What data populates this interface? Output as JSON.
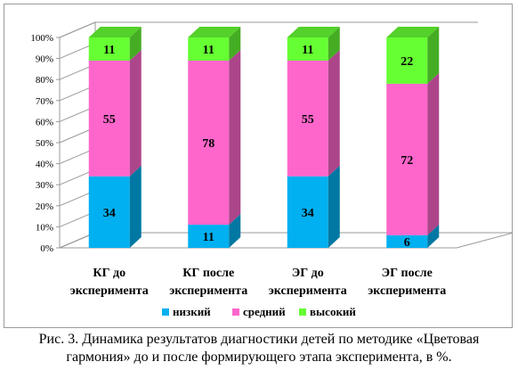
{
  "chart_data": {
    "type": "bar",
    "stacked": true,
    "three_d": true,
    "categories": [
      [
        "КГ до",
        "эксперимента"
      ],
      [
        "КГ после",
        "эксперимента"
      ],
      [
        "ЭГ до",
        "эксперимента"
      ],
      [
        "ЭГ после",
        "эксперимента"
      ]
    ],
    "series": [
      {
        "name": "низкий",
        "color": "#00b0f0",
        "values": [
          34,
          11,
          34,
          6
        ]
      },
      {
        "name": "средний",
        "color": "#ff66cc",
        "values": [
          55,
          78,
          55,
          72
        ]
      },
      {
        "name": "высокий",
        "color": "#66ff33",
        "values": [
          11,
          11,
          11,
          22
        ]
      }
    ],
    "yticks": [
      "0%",
      "10%",
      "20%",
      "30%",
      "40%",
      "50%",
      "60%",
      "70%",
      "80%",
      "90%",
      "100%"
    ],
    "ylim": [
      0,
      100
    ],
    "grid": false,
    "legend_position": "bottom"
  },
  "caption": {
    "line1": "Рис. 3. Динамика результатов диагностики детей по методике «Цветовая",
    "line2": "гармония» до и после формирующего этапа эксперимента, в %."
  }
}
